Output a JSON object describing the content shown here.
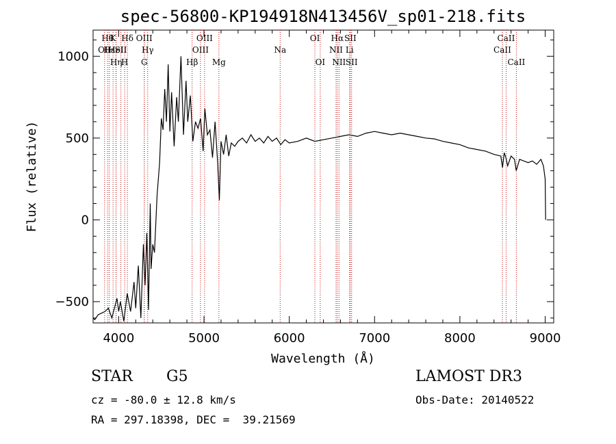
{
  "chart_data": {
    "type": "line",
    "title": "spec-56800-KP194918N413456V_sp01-218.fits",
    "xlabel": "Wavelength (Å)",
    "ylabel": "Flux (relative)",
    "xlim": [
      3700,
      9100
    ],
    "ylim": [
      -630,
      1160
    ],
    "xticks": [
      4000,
      5000,
      6000,
      7000,
      8000,
      9000
    ],
    "yticks": [
      -500,
      0,
      500,
      1000
    ],
    "grid": false,
    "series": [
      {
        "x": [
          3700,
          3720,
          3760,
          3800,
          3840,
          3880,
          3920,
          3960,
          3980,
          4000,
          4020,
          4060,
          4100,
          4140,
          4180,
          4200,
          4230,
          4260,
          4290,
          4310,
          4330,
          4350,
          4370,
          4380,
          4400,
          4420,
          4450,
          4480,
          4500,
          4520,
          4540,
          4560,
          4580,
          4600,
          4620,
          4650,
          4680,
          4700,
          4730,
          4760,
          4790,
          4810,
          4840,
          4870,
          4900,
          4930,
          4960,
          4990,
          5010,
          5040,
          5070,
          5100,
          5130,
          5160,
          5180,
          5200,
          5230,
          5260,
          5290,
          5320,
          5360,
          5400,
          5450,
          5500,
          5550,
          5600,
          5650,
          5700,
          5750,
          5800,
          5850,
          5900,
          5950,
          6000,
          6100,
          6200,
          6300,
          6400,
          6500,
          6600,
          6700,
          6800,
          6900,
          7000,
          7100,
          7200,
          7300,
          7400,
          7500,
          7600,
          7700,
          7800,
          7900,
          8000,
          8100,
          8200,
          8300,
          8400,
          8480,
          8500,
          8520,
          8540,
          8560,
          8600,
          8640,
          8660,
          8700,
          8750,
          8800,
          8850,
          8900,
          8950,
          8980,
          9000,
          9005
        ],
        "y": [
          -600,
          -610,
          -580,
          -570,
          -560,
          -540,
          -600,
          -520,
          -480,
          -560,
          -500,
          -620,
          -450,
          -560,
          -380,
          -540,
          -280,
          -600,
          -150,
          -400,
          -80,
          -550,
          100,
          -300,
          -150,
          -200,
          150,
          350,
          620,
          550,
          800,
          600,
          950,
          540,
          780,
          450,
          750,
          600,
          1000,
          520,
          850,
          600,
          760,
          480,
          600,
          560,
          620,
          420,
          680,
          520,
          550,
          380,
          600,
          350,
          120,
          480,
          400,
          520,
          390,
          470,
          450,
          480,
          500,
          470,
          520,
          480,
          500,
          470,
          510,
          480,
          500,
          460,
          490,
          470,
          480,
          500,
          480,
          490,
          500,
          510,
          520,
          510,
          530,
          540,
          530,
          520,
          530,
          520,
          510,
          500,
          495,
          480,
          470,
          460,
          440,
          430,
          420,
          400,
          390,
          320,
          410,
          380,
          330,
          390,
          370,
          300,
          370,
          360,
          350,
          360,
          340,
          370,
          330,
          250,
          0
        ]
      }
    ],
    "line_markers": [
      {
        "x": 3835,
        "label": "OII",
        "row": 2
      },
      {
        "x": 3870,
        "label": "Hθ",
        "row": 1
      },
      {
        "x": 3889,
        "label": "Hε",
        "row": 2
      },
      {
        "x": 3934,
        "label": "K",
        "row": 1
      },
      {
        "x": 3968,
        "label": "HeI",
        "row": 2
      },
      {
        "x": 3970,
        "label": "Hη",
        "row": 3
      },
      {
        "x": 4026,
        "label": "SII",
        "row": 2
      },
      {
        "x": 4070,
        "label": "H",
        "row": 3
      },
      {
        "x": 4102,
        "label": "Hδ",
        "row": 1
      },
      {
        "x": 4300,
        "label": "OIII",
        "row": 1
      },
      {
        "x": 4300,
        "label": "G",
        "row": 3
      },
      {
        "x": 4340,
        "label": "Hγ",
        "row": 2
      },
      {
        "x": 4861,
        "label": "Hβ",
        "row": 3
      },
      {
        "x": 4959,
        "label": "OIII",
        "row": 2
      },
      {
        "x": 5007,
        "label": "OIII",
        "row": 1
      },
      {
        "x": 5175,
        "label": "Mg",
        "row": 3
      },
      {
        "x": 5893,
        "label": "Na",
        "row": 2
      },
      {
        "x": 6300,
        "label": "OI",
        "row": 1
      },
      {
        "x": 6363,
        "label": "OI",
        "row": 3
      },
      {
        "x": 6548,
        "label": "NII",
        "row": 2
      },
      {
        "x": 6563,
        "label": "Hα",
        "row": 1
      },
      {
        "x": 6583,
        "label": "NII",
        "row": 3
      },
      {
        "x": 6707,
        "label": "Li",
        "row": 2
      },
      {
        "x": 6716,
        "label": "SII",
        "row": 1
      },
      {
        "x": 6731,
        "label": "SII",
        "row": 3
      },
      {
        "x": 8498,
        "label": "CaII",
        "row": 2
      },
      {
        "x": 8542,
        "label": "CaII",
        "row": 1
      },
      {
        "x": 8662,
        "label": "CaII",
        "row": 3
      }
    ]
  },
  "info": {
    "class": "STAR",
    "subclass": "G5",
    "survey": "LAMOST DR3",
    "cz": "cz = -80.0 ± 12.8 km/s",
    "obs_date": "Obs-Date: 20140522",
    "radec": "RA = 297.18398, DEC =  39.21569"
  },
  "colors": {
    "marker": "#cc0000",
    "spectrum": "#000000"
  }
}
